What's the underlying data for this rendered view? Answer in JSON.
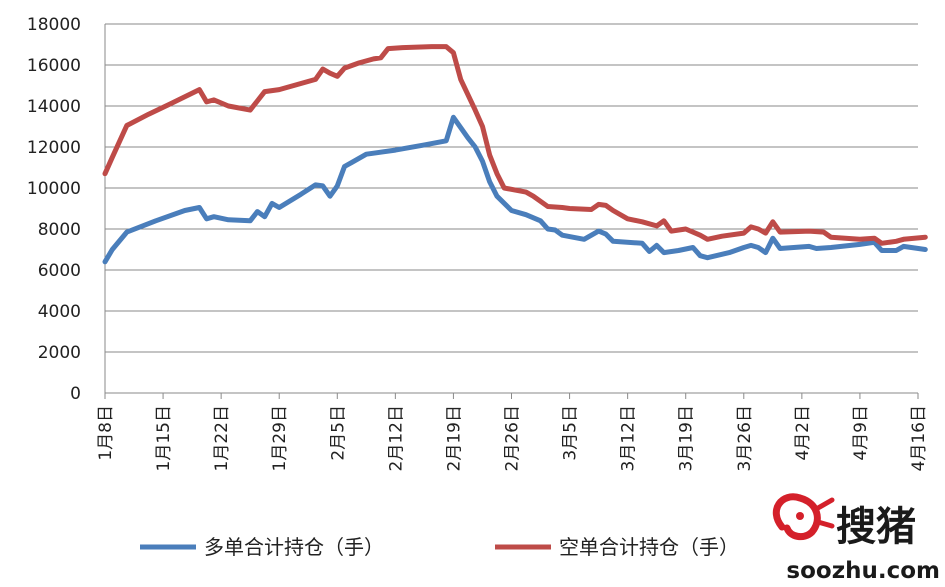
{
  "chart_data": {
    "type": "line",
    "ylim": [
      0,
      18000
    ],
    "y_ticks": [
      "0",
      "2000",
      "4000",
      "6000",
      "8000",
      "10000",
      "12000",
      "14000",
      "16000",
      "18000"
    ],
    "x_ticks": [
      "1月8日",
      "1月15日",
      "1月22日",
      "1月29日",
      "2月5日",
      "2月12日",
      "2月19日",
      "2月26日",
      "3月5日",
      "3月12日",
      "3月19日",
      "3月26日",
      "4月2日",
      "4月9日",
      "4月16日"
    ],
    "grid": true,
    "legend_position": "bottom",
    "series": [
      {
        "name": "多单合计持仓（手）",
        "color": "#4a7ebb",
        "points": [
          [
            0,
            6400
          ],
          [
            1,
            7000
          ],
          [
            3,
            7850
          ],
          [
            7,
            8400
          ],
          [
            11,
            8900
          ],
          [
            13,
            9050
          ],
          [
            14,
            8500
          ],
          [
            15,
            8600
          ],
          [
            17,
            8450
          ],
          [
            20,
            8400
          ],
          [
            21,
            8850
          ],
          [
            22,
            8600
          ],
          [
            23,
            9250
          ],
          [
            24,
            9050
          ],
          [
            27,
            9700
          ],
          [
            29,
            10150
          ],
          [
            30,
            10100
          ],
          [
            31,
            9600
          ],
          [
            32,
            10100
          ],
          [
            33,
            11050
          ],
          [
            34,
            11250
          ],
          [
            36,
            11650
          ],
          [
            37,
            11700
          ],
          [
            40,
            11850
          ],
          [
            44,
            12100
          ],
          [
            47,
            12300
          ],
          [
            48,
            13450
          ],
          [
            50,
            12450
          ],
          [
            51,
            12000
          ],
          [
            52,
            11300
          ],
          [
            53,
            10300
          ],
          [
            54,
            9600
          ],
          [
            56,
            8900
          ],
          [
            58,
            8700
          ],
          [
            60,
            8400
          ],
          [
            61,
            8000
          ],
          [
            62,
            7950
          ],
          [
            63,
            7700
          ],
          [
            66,
            7500
          ],
          [
            68,
            7900
          ],
          [
            69,
            7750
          ],
          [
            70,
            7400
          ],
          [
            74,
            7300
          ],
          [
            75,
            6900
          ],
          [
            76,
            7200
          ],
          [
            77,
            6850
          ],
          [
            79,
            6950
          ],
          [
            81,
            7100
          ],
          [
            82,
            6700
          ],
          [
            83,
            6600
          ],
          [
            86,
            6850
          ],
          [
            88,
            7100
          ],
          [
            89,
            7200
          ],
          [
            90,
            7100
          ],
          [
            91,
            6850
          ],
          [
            92,
            7550
          ],
          [
            93,
            7050
          ],
          [
            97,
            7150
          ],
          [
            98,
            7050
          ],
          [
            100,
            7100
          ],
          [
            104,
            7250
          ],
          [
            106,
            7350
          ],
          [
            107,
            6950
          ],
          [
            109,
            6950
          ],
          [
            110,
            7150
          ],
          [
            113,
            7000
          ]
        ]
      },
      {
        "name": "空单合计持仓（手）",
        "color": "#be4b48",
        "points": [
          [
            0,
            10700
          ],
          [
            1,
            11500
          ],
          [
            3,
            13050
          ],
          [
            6,
            13600
          ],
          [
            9,
            14100
          ],
          [
            13,
            14800
          ],
          [
            14,
            14200
          ],
          [
            15,
            14300
          ],
          [
            17,
            14000
          ],
          [
            20,
            13800
          ],
          [
            22,
            14700
          ],
          [
            24,
            14800
          ],
          [
            29,
            15300
          ],
          [
            30,
            15800
          ],
          [
            31,
            15600
          ],
          [
            32,
            15450
          ],
          [
            33,
            15850
          ],
          [
            35,
            16100
          ],
          [
            37,
            16300
          ],
          [
            38,
            16350
          ],
          [
            39,
            16800
          ],
          [
            41,
            16850
          ],
          [
            45,
            16900
          ],
          [
            47,
            16900
          ],
          [
            48,
            16600
          ],
          [
            49,
            15300
          ],
          [
            51,
            13800
          ],
          [
            52,
            13000
          ],
          [
            53,
            11600
          ],
          [
            54,
            10700
          ],
          [
            55,
            10000
          ],
          [
            58,
            9800
          ],
          [
            59,
            9600
          ],
          [
            61,
            9100
          ],
          [
            63,
            9050
          ],
          [
            64,
            9000
          ],
          [
            67,
            8950
          ],
          [
            68,
            9200
          ],
          [
            69,
            9150
          ],
          [
            70,
            8900
          ],
          [
            72,
            8500
          ],
          [
            74,
            8350
          ],
          [
            76,
            8150
          ],
          [
            77,
            8400
          ],
          [
            78,
            7900
          ],
          [
            80,
            8000
          ],
          [
            82,
            7700
          ],
          [
            83,
            7500
          ],
          [
            85,
            7650
          ],
          [
            88,
            7800
          ],
          [
            89,
            8100
          ],
          [
            90,
            8000
          ],
          [
            91,
            7800
          ],
          [
            92,
            8350
          ],
          [
            93,
            7850
          ],
          [
            97,
            7900
          ],
          [
            99,
            7850
          ],
          [
            100,
            7600
          ],
          [
            104,
            7500
          ],
          [
            106,
            7550
          ],
          [
            107,
            7300
          ],
          [
            109,
            7400
          ],
          [
            110,
            7500
          ],
          [
            113,
            7600
          ]
        ]
      }
    ]
  },
  "watermark": {
    "chinese_text": "搜猪",
    "url_text": "soozhu.com",
    "logo_color": "#d4202a"
  }
}
